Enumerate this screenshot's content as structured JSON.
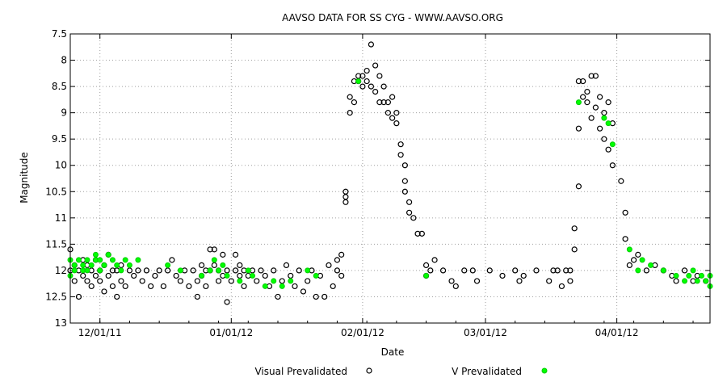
{
  "chart_data": {
    "type": "scatter",
    "title": "AAVSO DATA FOR SS CYG - WWW.AAVSO.ORG",
    "xlabel": "Date",
    "ylabel": "Magnitude",
    "x_ticks": [
      {
        "label": "12/01/11",
        "date": "2011-12-01"
      },
      {
        "label": "01/01/12",
        "date": "2012-01-01"
      },
      {
        "label": "02/01/12",
        "date": "2012-02-01"
      },
      {
        "label": "03/01/12",
        "date": "2012-03-01"
      },
      {
        "label": "04/01/12",
        "date": "2012-04-01"
      }
    ],
    "xlim": [
      "2011-11-24",
      "2012-04-23"
    ],
    "y_ticks": [
      "7.5",
      "8",
      "8.5",
      "9",
      "9.5",
      "10",
      "10.5",
      "11",
      "11.5",
      "12",
      "12.5",
      "13"
    ],
    "ylim": [
      7.5,
      13
    ],
    "y_inverted": true,
    "grid": true,
    "legend_position": "bottom",
    "series": [
      {
        "name": "Visual Prevalidated",
        "marker": "open-circle",
        "color": "#000000",
        "points": [
          [
            "2011-11-24",
            11.6
          ],
          [
            "2011-11-24",
            12.0
          ],
          [
            "2011-11-25",
            11.9
          ],
          [
            "2011-11-25",
            12.2
          ],
          [
            "2011-11-26",
            12.0
          ],
          [
            "2011-11-26",
            12.5
          ],
          [
            "2011-11-27",
            12.1
          ],
          [
            "2011-11-27",
            11.8
          ],
          [
            "2011-11-28",
            12.2
          ],
          [
            "2011-11-28",
            11.9
          ],
          [
            "2011-11-29",
            12.0
          ],
          [
            "2011-11-29",
            12.3
          ],
          [
            "2011-11-30",
            11.8
          ],
          [
            "2011-11-30",
            12.1
          ],
          [
            "2011-12-01",
            12.0
          ],
          [
            "2011-12-01",
            12.2
          ],
          [
            "2011-12-02",
            11.9
          ],
          [
            "2011-12-02",
            12.4
          ],
          [
            "2011-12-03",
            12.1
          ],
          [
            "2011-12-03",
            11.7
          ],
          [
            "2011-12-04",
            12.0
          ],
          [
            "2011-12-04",
            12.3
          ],
          [
            "2011-12-05",
            12.5
          ],
          [
            "2011-12-05",
            12.0
          ],
          [
            "2011-12-06",
            12.2
          ],
          [
            "2011-12-06",
            11.9
          ],
          [
            "2011-12-07",
            12.3
          ],
          [
            "2011-12-08",
            12.0
          ],
          [
            "2011-12-09",
            12.1
          ],
          [
            "2011-12-10",
            12.0
          ],
          [
            "2011-12-11",
            12.2
          ],
          [
            "2011-12-12",
            12.0
          ],
          [
            "2011-12-13",
            12.3
          ],
          [
            "2011-12-14",
            12.1
          ],
          [
            "2011-12-15",
            12.0
          ],
          [
            "2011-12-16",
            12.3
          ],
          [
            "2011-12-17",
            12.0
          ],
          [
            "2011-12-18",
            11.8
          ],
          [
            "2011-12-19",
            12.1
          ],
          [
            "2011-12-20",
            12.2
          ],
          [
            "2011-12-21",
            12.0
          ],
          [
            "2011-12-22",
            12.3
          ],
          [
            "2011-12-23",
            12.0
          ],
          [
            "2011-12-24",
            12.5
          ],
          [
            "2011-12-24",
            12.2
          ],
          [
            "2011-12-25",
            11.9
          ],
          [
            "2011-12-25",
            12.1
          ],
          [
            "2011-12-26",
            12.0
          ],
          [
            "2011-12-26",
            12.3
          ],
          [
            "2011-12-27",
            11.6
          ],
          [
            "2011-12-27",
            12.0
          ],
          [
            "2011-12-28",
            11.6
          ],
          [
            "2011-12-28",
            11.9
          ],
          [
            "2011-12-29",
            12.2
          ],
          [
            "2011-12-29",
            12.0
          ],
          [
            "2011-12-30",
            11.7
          ],
          [
            "2011-12-30",
            12.1
          ],
          [
            "2011-12-31",
            12.6
          ],
          [
            "2011-12-31",
            12.0
          ],
          [
            "2012-01-01",
            12.2
          ],
          [
            "2012-01-02",
            11.7
          ],
          [
            "2012-01-02",
            12.0
          ],
          [
            "2012-01-03",
            12.1
          ],
          [
            "2012-01-03",
            11.9
          ],
          [
            "2012-01-04",
            12.3
          ],
          [
            "2012-01-04",
            12.0
          ],
          [
            "2012-01-05",
            12.1
          ],
          [
            "2012-01-06",
            12.0
          ],
          [
            "2012-01-07",
            12.2
          ],
          [
            "2012-01-08",
            12.0
          ],
          [
            "2012-01-09",
            12.1
          ],
          [
            "2012-01-10",
            12.3
          ],
          [
            "2012-01-11",
            12.0
          ],
          [
            "2012-01-12",
            12.5
          ],
          [
            "2012-01-13",
            12.2
          ],
          [
            "2012-01-14",
            11.9
          ],
          [
            "2012-01-15",
            12.1
          ],
          [
            "2012-01-16",
            12.3
          ],
          [
            "2012-01-17",
            12.0
          ],
          [
            "2012-01-18",
            12.4
          ],
          [
            "2012-01-19",
            12.2
          ],
          [
            "2012-01-20",
            12.0
          ],
          [
            "2012-01-21",
            12.5
          ],
          [
            "2012-01-22",
            12.1
          ],
          [
            "2012-01-23",
            12.5
          ],
          [
            "2012-01-24",
            11.9
          ],
          [
            "2012-01-25",
            12.3
          ],
          [
            "2012-01-26",
            11.8
          ],
          [
            "2012-01-26",
            12.0
          ],
          [
            "2012-01-27",
            11.7
          ],
          [
            "2012-01-27",
            12.1
          ],
          [
            "2012-01-28",
            10.5
          ],
          [
            "2012-01-28",
            10.7
          ],
          [
            "2012-01-28",
            10.6
          ],
          [
            "2012-01-29",
            9.0
          ],
          [
            "2012-01-29",
            8.7
          ],
          [
            "2012-01-30",
            8.4
          ],
          [
            "2012-01-30",
            8.8
          ],
          [
            "2012-01-31",
            8.3
          ],
          [
            "2012-01-31",
            8.4
          ],
          [
            "2012-02-01",
            8.3
          ],
          [
            "2012-02-01",
            8.5
          ],
          [
            "2012-02-02",
            8.4
          ],
          [
            "2012-02-02",
            8.2
          ],
          [
            "2012-02-03",
            7.7
          ],
          [
            "2012-02-03",
            8.5
          ],
          [
            "2012-02-04",
            8.1
          ],
          [
            "2012-02-04",
            8.6
          ],
          [
            "2012-02-05",
            8.3
          ],
          [
            "2012-02-05",
            8.8
          ],
          [
            "2012-02-06",
            8.5
          ],
          [
            "2012-02-06",
            8.8
          ],
          [
            "2012-02-07",
            9.0
          ],
          [
            "2012-02-07",
            8.8
          ],
          [
            "2012-02-08",
            9.1
          ],
          [
            "2012-02-08",
            8.7
          ],
          [
            "2012-02-09",
            9.0
          ],
          [
            "2012-02-09",
            9.2
          ],
          [
            "2012-02-10",
            9.6
          ],
          [
            "2012-02-10",
            9.8
          ],
          [
            "2012-02-11",
            10.0
          ],
          [
            "2012-02-11",
            10.3
          ],
          [
            "2012-02-11",
            10.5
          ],
          [
            "2012-02-12",
            10.9
          ],
          [
            "2012-02-12",
            10.7
          ],
          [
            "2012-02-13",
            11.0
          ],
          [
            "2012-02-14",
            11.3
          ],
          [
            "2012-02-15",
            11.3
          ],
          [
            "2012-02-16",
            11.9
          ],
          [
            "2012-02-16",
            12.1
          ],
          [
            "2012-02-17",
            12.0
          ],
          [
            "2012-02-18",
            11.8
          ],
          [
            "2012-02-20",
            12.0
          ],
          [
            "2012-02-22",
            12.2
          ],
          [
            "2012-02-23",
            12.3
          ],
          [
            "2012-02-25",
            12.0
          ],
          [
            "2012-02-27",
            12.0
          ],
          [
            "2012-02-28",
            12.2
          ],
          [
            "2012-03-02",
            12.0
          ],
          [
            "2012-03-05",
            12.1
          ],
          [
            "2012-03-08",
            12.0
          ],
          [
            "2012-03-09",
            12.2
          ],
          [
            "2012-03-10",
            12.1
          ],
          [
            "2012-03-13",
            12.0
          ],
          [
            "2012-03-16",
            12.2
          ],
          [
            "2012-03-17",
            12.0
          ],
          [
            "2012-03-18",
            12.0
          ],
          [
            "2012-03-19",
            12.3
          ],
          [
            "2012-03-20",
            12.0
          ],
          [
            "2012-03-21",
            12.0
          ],
          [
            "2012-03-21",
            12.2
          ],
          [
            "2012-03-22",
            11.6
          ],
          [
            "2012-03-22",
            11.2
          ],
          [
            "2012-03-23",
            10.4
          ],
          [
            "2012-03-23",
            9.3
          ],
          [
            "2012-03-23",
            8.4
          ],
          [
            "2012-03-24",
            8.7
          ],
          [
            "2012-03-24",
            8.4
          ],
          [
            "2012-03-25",
            8.6
          ],
          [
            "2012-03-25",
            8.8
          ],
          [
            "2012-03-26",
            8.3
          ],
          [
            "2012-03-26",
            9.1
          ],
          [
            "2012-03-27",
            8.9
          ],
          [
            "2012-03-27",
            8.3
          ],
          [
            "2012-03-28",
            8.7
          ],
          [
            "2012-03-28",
            9.3
          ],
          [
            "2012-03-29",
            9.0
          ],
          [
            "2012-03-29",
            9.5
          ],
          [
            "2012-03-30",
            8.8
          ],
          [
            "2012-03-30",
            9.7
          ],
          [
            "2012-03-31",
            9.2
          ],
          [
            "2012-03-31",
            10.0
          ],
          [
            "2012-04-02",
            10.3
          ],
          [
            "2012-04-03",
            10.9
          ],
          [
            "2012-04-03",
            11.4
          ],
          [
            "2012-04-04",
            11.9
          ],
          [
            "2012-04-05",
            11.8
          ],
          [
            "2012-04-06",
            11.7
          ],
          [
            "2012-04-08",
            12.0
          ],
          [
            "2012-04-10",
            11.9
          ],
          [
            "2012-04-12",
            12.0
          ],
          [
            "2012-04-14",
            12.1
          ],
          [
            "2012-04-15",
            12.2
          ],
          [
            "2012-04-17",
            12.0
          ],
          [
            "2012-04-19",
            12.2
          ],
          [
            "2012-04-20",
            12.1
          ],
          [
            "2012-04-22",
            12.2
          ]
        ]
      },
      {
        "name": "V Prevalidated",
        "marker": "filled-circle",
        "color": "#00ff00",
        "points": [
          [
            "2011-11-24",
            11.8
          ],
          [
            "2011-11-24",
            12.1
          ],
          [
            "2011-11-25",
            11.9
          ],
          [
            "2011-11-25",
            12.0
          ],
          [
            "2011-11-26",
            11.8
          ],
          [
            "2011-11-27",
            12.0
          ],
          [
            "2011-11-27",
            11.9
          ],
          [
            "2011-11-28",
            11.8
          ],
          [
            "2011-11-28",
            12.0
          ],
          [
            "2011-11-29",
            11.9
          ],
          [
            "2011-11-30",
            11.7
          ],
          [
            "2011-11-30",
            11.8
          ],
          [
            "2011-12-01",
            12.0
          ],
          [
            "2011-12-01",
            11.8
          ],
          [
            "2011-12-02",
            11.9
          ],
          [
            "2011-12-03",
            11.7
          ],
          [
            "2011-12-04",
            11.8
          ],
          [
            "2011-12-05",
            11.9
          ],
          [
            "2011-12-06",
            12.0
          ],
          [
            "2011-12-07",
            11.8
          ],
          [
            "2011-12-08",
            11.9
          ],
          [
            "2011-12-10",
            11.8
          ],
          [
            "2011-12-17",
            11.9
          ],
          [
            "2011-12-20",
            12.0
          ],
          [
            "2011-12-25",
            12.1
          ],
          [
            "2011-12-27",
            12.0
          ],
          [
            "2011-12-28",
            11.8
          ],
          [
            "2011-12-29",
            12.0
          ],
          [
            "2011-12-30",
            11.9
          ],
          [
            "2011-12-31",
            12.1
          ],
          [
            "2012-01-03",
            12.2
          ],
          [
            "2012-01-05",
            12.0
          ],
          [
            "2012-01-06",
            12.1
          ],
          [
            "2012-01-09",
            12.3
          ],
          [
            "2012-01-11",
            12.2
          ],
          [
            "2012-01-13",
            12.3
          ],
          [
            "2012-01-15",
            12.2
          ],
          [
            "2012-01-19",
            12.0
          ],
          [
            "2012-01-21",
            12.1
          ],
          [
            "2012-01-31",
            8.4
          ],
          [
            "2012-02-16",
            12.1
          ],
          [
            "2012-03-23",
            8.8
          ],
          [
            "2012-03-29",
            9.1
          ],
          [
            "2012-03-30",
            9.2
          ],
          [
            "2012-03-31",
            9.6
          ],
          [
            "2012-04-04",
            11.6
          ],
          [
            "2012-04-06",
            12.0
          ],
          [
            "2012-04-07",
            11.8
          ],
          [
            "2012-04-09",
            11.9
          ],
          [
            "2012-04-12",
            12.0
          ],
          [
            "2012-04-15",
            12.1
          ],
          [
            "2012-04-17",
            12.2
          ],
          [
            "2012-04-18",
            12.1
          ],
          [
            "2012-04-19",
            12.0
          ],
          [
            "2012-04-20",
            12.2
          ],
          [
            "2012-04-21",
            12.1
          ],
          [
            "2012-04-22",
            12.2
          ],
          [
            "2012-04-23",
            12.3
          ],
          [
            "2012-04-23",
            12.1
          ]
        ]
      }
    ]
  }
}
